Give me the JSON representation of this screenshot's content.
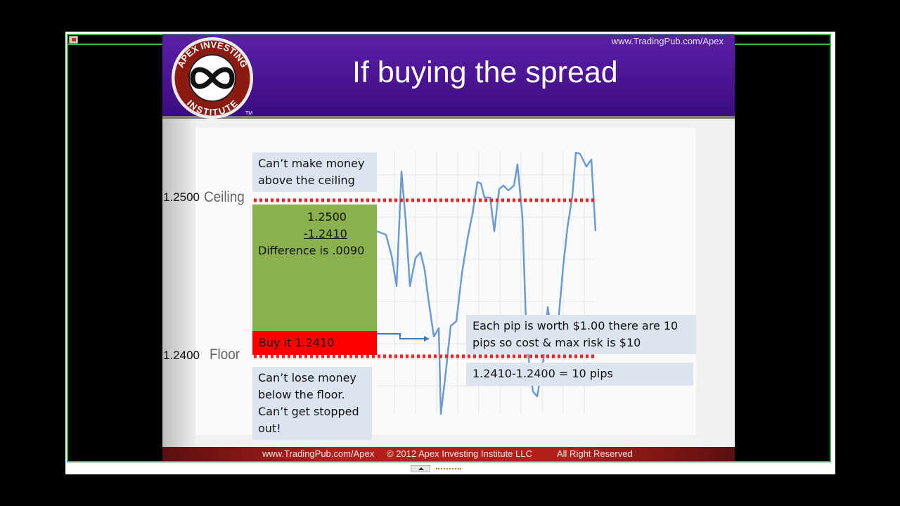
{
  "slide": {
    "url_top": "www.TradingPub.com/Apex",
    "title": "If buying the spread",
    "logo": {
      "top_text": "APEX INVESTING",
      "bottom_text": "INSTITUTE",
      "tm": "TM"
    },
    "ceiling": {
      "price": "1.2500",
      "label": "Ceiling"
    },
    "floor": {
      "price": "1.2400",
      "label": "Floor"
    },
    "note_top": [
      "Can’t make money",
      "above the ceiling"
    ],
    "calc": {
      "line1": "1.2500",
      "line2": "-1.2410",
      "line3": "Difference is .0090"
    },
    "buy_label": "Buy it 1.2410",
    "note_bottom": [
      "Can’t lose money",
      "below the floor.",
      "Can’t get stopped",
      "out!"
    ],
    "note_pip": [
      "Each pip is worth $1.00 there are 10",
      "pips so cost & max risk is $10"
    ],
    "note_pips": "1.2410-1.2400 = 10 pips",
    "footer": {
      "url": "www.TradingPub.com/Apex",
      "copyright": "©  2012 Apex Investing Institute LLC",
      "rights": "All Right Reserved"
    }
  },
  "colors": {
    "header": "#4a148c",
    "green_zone": "#8ab14d",
    "buy_zone": "#ff0000",
    "dotted_line": "#ff0000",
    "price_line": "#6b9bd2",
    "footer": "#b3201a",
    "viewer_border": "#39b54a"
  }
}
